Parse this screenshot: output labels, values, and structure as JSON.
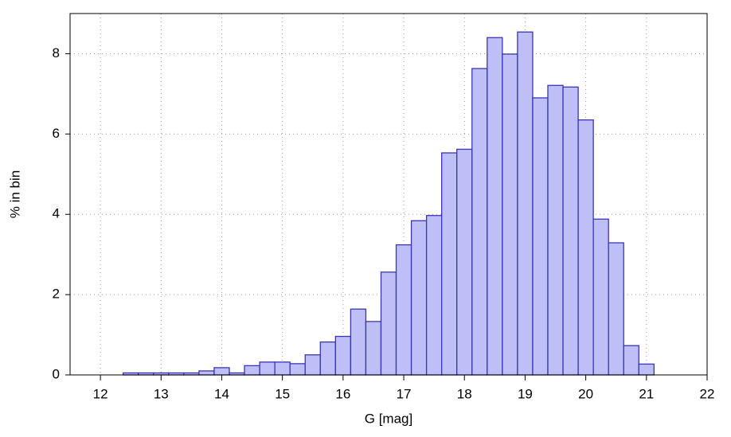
{
  "chart_data": {
    "type": "histogram",
    "xlabel": "G [mag]",
    "ylabel": "% in bin",
    "bins": [
      12.375,
      12.625,
      12.875,
      13.125,
      13.375,
      13.625,
      13.875,
      14.125,
      14.375,
      14.625,
      14.875,
      15.125,
      15.375,
      15.625,
      15.875,
      16.125,
      16.375,
      16.625,
      16.875,
      17.125,
      17.375,
      17.625,
      17.875,
      18.125,
      18.375,
      18.625,
      18.875,
      19.125,
      19.375,
      19.625,
      19.875,
      20.125,
      20.375,
      20.625,
      20.875,
      21.125
    ],
    "values": [
      0.05,
      0.05,
      0.05,
      0.05,
      0.05,
      0.1,
      0.18,
      0.05,
      0.23,
      0.32,
      0.32,
      0.28,
      0.5,
      0.82,
      0.96,
      1.64,
      1.33,
      2.56,
      3.24,
      3.84,
      3.97,
      5.53,
      5.62,
      7.63,
      8.4,
      7.99,
      8.54,
      6.9,
      7.21,
      7.17,
      6.35,
      3.88,
      3.29,
      0.73,
      0.27
    ],
    "color": "#bfbff7",
    "edgecolor": "#3a35b0",
    "xlim": [
      11.5,
      22
    ],
    "xticks": [
      12,
      13,
      14,
      15,
      16,
      17,
      18,
      19,
      20,
      21,
      22
    ],
    "ylim": [
      0,
      9
    ],
    "yticks": [
      0,
      2,
      4,
      6,
      8
    ],
    "grid": true
  }
}
